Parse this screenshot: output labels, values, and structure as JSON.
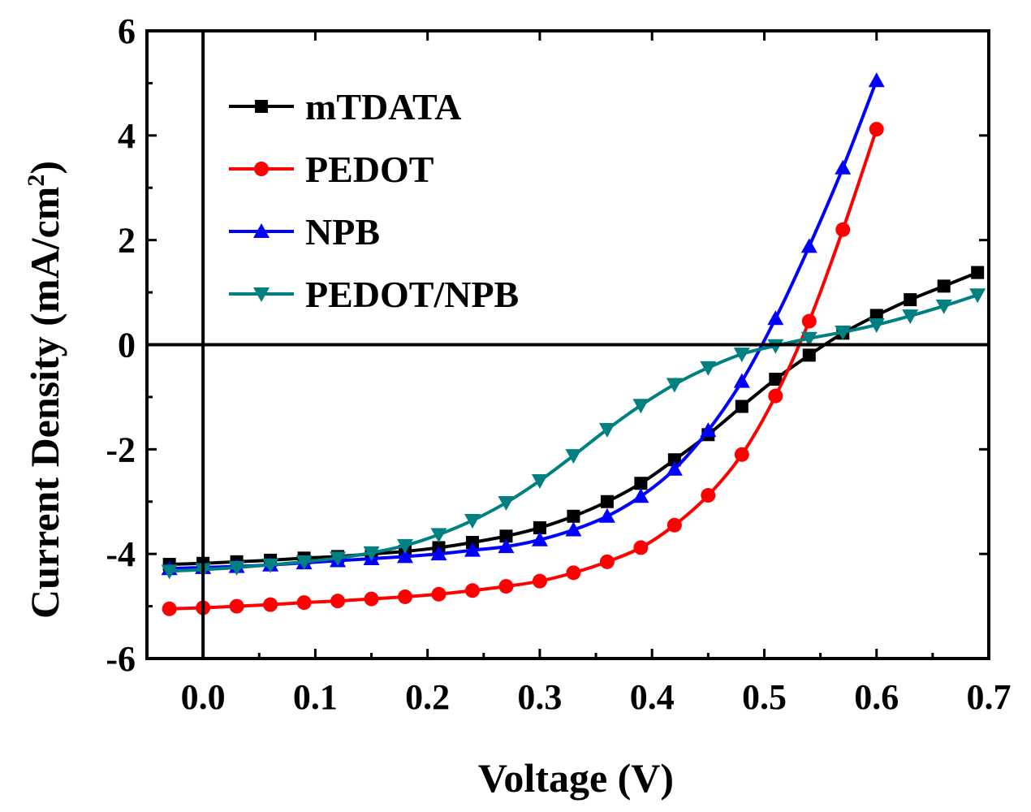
{
  "chart_data": {
    "type": "line",
    "title": "",
    "xlabel": "Voltage (V)",
    "ylabel": "Current Density (mA/cm",
    "ylabel_sup": "2",
    "ylabel_close": ")",
    "xlim": [
      -0.05,
      0.7
    ],
    "ylim": [
      -6,
      6
    ],
    "xticks": [
      0.0,
      0.1,
      0.2,
      0.3,
      0.4,
      0.5,
      0.6,
      0.7
    ],
    "xtick_labels": [
      "0.0",
      "0.1",
      "0.2",
      "0.3",
      "0.4",
      "0.5",
      "0.6",
      "0.7"
    ],
    "yticks": [
      -6,
      -4,
      -2,
      0,
      2,
      4,
      6
    ],
    "ytick_labels": [
      "-6",
      "-4",
      "-2",
      "0",
      "2",
      "4",
      "6"
    ],
    "zero_lines": {
      "x": 0,
      "y": 0
    },
    "legend_position": "top-left",
    "series": [
      {
        "name": "mTDATA",
        "color": "#000000",
        "marker": "square",
        "x": [
          -0.03,
          0.0,
          0.03,
          0.06,
          0.09,
          0.12,
          0.15,
          0.18,
          0.21,
          0.24,
          0.27,
          0.3,
          0.33,
          0.36,
          0.39,
          0.42,
          0.45,
          0.48,
          0.51,
          0.54,
          0.57,
          0.6,
          0.63,
          0.66,
          0.69
        ],
        "y": [
          -4.2,
          -4.18,
          -4.15,
          -4.12,
          -4.08,
          -4.05,
          -4.0,
          -3.95,
          -3.88,
          -3.78,
          -3.66,
          -3.5,
          -3.28,
          -3.0,
          -2.65,
          -2.2,
          -1.72,
          -1.18,
          -0.66,
          -0.2,
          0.22,
          0.56,
          0.86,
          1.12,
          1.38
        ]
      },
      {
        "name": "PEDOT",
        "color": "#ff0000",
        "marker": "circle",
        "x": [
          -0.03,
          0.0,
          0.03,
          0.06,
          0.09,
          0.12,
          0.15,
          0.18,
          0.21,
          0.24,
          0.27,
          0.3,
          0.33,
          0.36,
          0.39,
          0.42,
          0.45,
          0.48,
          0.51,
          0.54,
          0.57,
          0.6
        ],
        "y": [
          -5.05,
          -5.03,
          -5.0,
          -4.97,
          -4.93,
          -4.9,
          -4.86,
          -4.82,
          -4.77,
          -4.7,
          -4.62,
          -4.52,
          -4.36,
          -4.15,
          -3.88,
          -3.45,
          -2.88,
          -2.1,
          -0.98,
          0.45,
          2.2,
          4.12
        ]
      },
      {
        "name": "NPB",
        "color": "#0000ff",
        "marker": "triangle-up",
        "x": [
          -0.03,
          0.0,
          0.03,
          0.06,
          0.09,
          0.12,
          0.15,
          0.18,
          0.21,
          0.24,
          0.27,
          0.3,
          0.33,
          0.36,
          0.39,
          0.42,
          0.45,
          0.48,
          0.51,
          0.54,
          0.57,
          0.6
        ],
        "y": [
          -4.28,
          -4.26,
          -4.24,
          -4.21,
          -4.17,
          -4.13,
          -4.09,
          -4.05,
          -4.0,
          -3.93,
          -3.86,
          -3.73,
          -3.54,
          -3.28,
          -2.9,
          -2.38,
          -1.64,
          -0.7,
          0.5,
          1.88,
          3.38,
          5.05
        ]
      },
      {
        "name": "PEDOT/NPB",
        "color": "#008080",
        "marker": "triangle-down",
        "x": [
          -0.03,
          0.0,
          0.03,
          0.06,
          0.09,
          0.12,
          0.15,
          0.18,
          0.21,
          0.24,
          0.27,
          0.3,
          0.33,
          0.36,
          0.39,
          0.42,
          0.45,
          0.48,
          0.51,
          0.54,
          0.57,
          0.6,
          0.63,
          0.66,
          0.69
        ],
        "y": [
          -4.33,
          -4.3,
          -4.26,
          -4.21,
          -4.15,
          -4.08,
          -3.98,
          -3.84,
          -3.63,
          -3.36,
          -3.02,
          -2.6,
          -2.12,
          -1.62,
          -1.16,
          -0.76,
          -0.44,
          -0.18,
          -0.02,
          0.12,
          0.24,
          0.38,
          0.55,
          0.74,
          0.95
        ]
      }
    ]
  }
}
